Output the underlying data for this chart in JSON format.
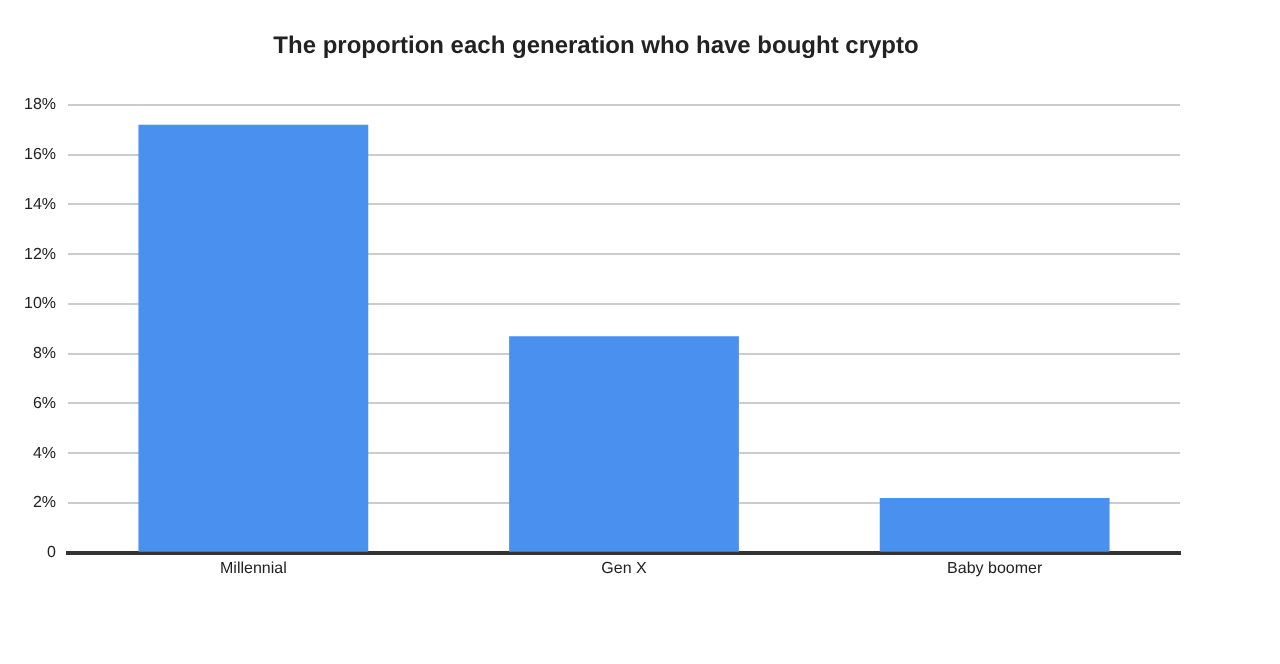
{
  "chart_data": {
    "type": "bar",
    "title": "The proportion each generation who have bought crypto",
    "categories": [
      "Millennial",
      "Gen X",
      "Baby boomer"
    ],
    "values": [
      17.2,
      8.7,
      2.2
    ],
    "color": "#4a90ee",
    "ylim": [
      0,
      18
    ],
    "yticks": [
      {
        "value": 0,
        "label": "0"
      },
      {
        "value": 2,
        "label": "2%"
      },
      {
        "value": 4,
        "label": "4%"
      },
      {
        "value": 6,
        "label": "6%"
      },
      {
        "value": 8,
        "label": "8%"
      },
      {
        "value": 10,
        "label": "10%"
      },
      {
        "value": 12,
        "label": "12%"
      },
      {
        "value": 14,
        "label": "14%"
      },
      {
        "value": 16,
        "label": "16%"
      },
      {
        "value": 18,
        "label": "18%"
      }
    ],
    "grid": "y"
  }
}
